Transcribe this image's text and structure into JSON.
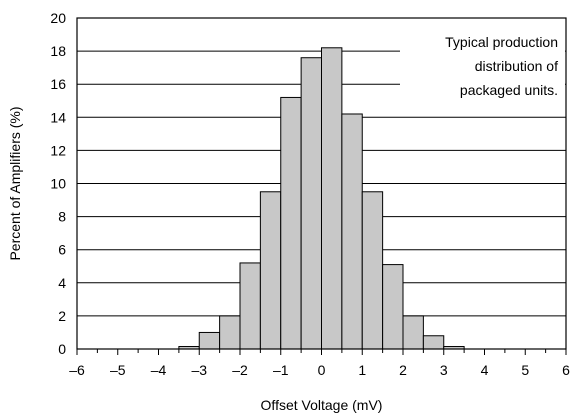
{
  "chart_data": {
    "type": "bar",
    "title": "",
    "xlabel": "Offset Voltage (mV)",
    "ylabel": "Percent of Amplifiers (%)",
    "xlim": [
      -6,
      6
    ],
    "ylim": [
      0,
      20
    ],
    "x_ticks": [
      -6,
      -5,
      -4,
      -3,
      -2,
      -1,
      0,
      1,
      2,
      3,
      4,
      5,
      6
    ],
    "x_tick_labels": [
      "–6",
      "–5",
      "–4",
      "–3",
      "–2",
      "–1",
      "0",
      "1",
      "2",
      "3",
      "4",
      "5",
      "6"
    ],
    "y_ticks": [
      0,
      2,
      4,
      6,
      8,
      10,
      12,
      14,
      16,
      18,
      20
    ],
    "y_tick_labels": [
      "0",
      "2",
      "4",
      "6",
      "8",
      "10",
      "12",
      "14",
      "16",
      "18",
      "20"
    ],
    "grid": "horizontal",
    "bin_width": 0.5,
    "bins": [
      {
        "x0": -3.5,
        "x1": -3.0,
        "value": 0.15
      },
      {
        "x0": -3.0,
        "x1": -2.5,
        "value": 1.0
      },
      {
        "x0": -2.5,
        "x1": -2.0,
        "value": 2.0
      },
      {
        "x0": -2.0,
        "x1": -1.5,
        "value": 5.2
      },
      {
        "x0": -1.5,
        "x1": -1.0,
        "value": 9.5
      },
      {
        "x0": -1.0,
        "x1": -0.5,
        "value": 15.2
      },
      {
        "x0": -0.5,
        "x1": 0.0,
        "value": 17.6
      },
      {
        "x0": 0.0,
        "x1": 0.5,
        "value": 18.2
      },
      {
        "x0": 0.5,
        "x1": 1.0,
        "value": 14.2
      },
      {
        "x0": 1.0,
        "x1": 1.5,
        "value": 9.5
      },
      {
        "x0": 1.5,
        "x1": 2.0,
        "value": 5.1
      },
      {
        "x0": 2.0,
        "x1": 2.5,
        "value": 2.0
      },
      {
        "x0": 2.5,
        "x1": 3.0,
        "value": 0.8
      },
      {
        "x0": 3.0,
        "x1": 3.5,
        "value": 0.15
      }
    ],
    "annotation": [
      "Typical production",
      "distribution of",
      "packaged units."
    ],
    "colors": {
      "bar_fill": "#c8c8c8",
      "bar_stroke": "#000000",
      "grid": "#000000",
      "background": "#ffffff"
    }
  }
}
